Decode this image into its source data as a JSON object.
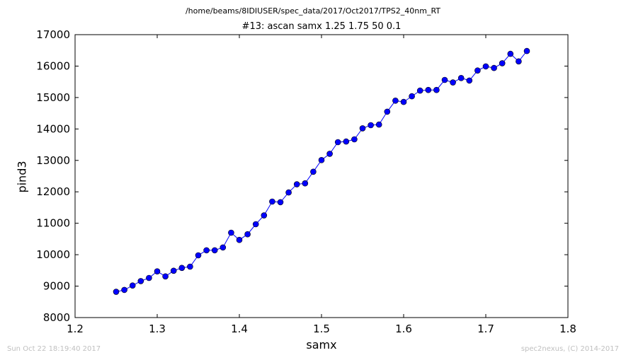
{
  "suptitle": "/home/beams/8IDIUSER/spec_data/2017/Oct2017/TPS2_40nm_RT",
  "footer": {
    "timestamp": "Sun Oct 22 18:19:40 2017",
    "credit": "spec2nexus, (C) 2014-2017"
  },
  "chart_data": {
    "type": "line",
    "title": "#13: ascan  samx 1.25 1.75  50 0.1",
    "xlabel": "samx",
    "ylabel": "pind3",
    "xlim": [
      1.2,
      1.8
    ],
    "ylim": [
      8000,
      17000
    ],
    "xticks": [
      1.2,
      1.3,
      1.4,
      1.5,
      1.6,
      1.7,
      1.8
    ],
    "xtick_labels": [
      "1.2",
      "1.3",
      "1.4",
      "1.5",
      "1.6",
      "1.7",
      "1.8"
    ],
    "yticks": [
      8000,
      9000,
      10000,
      11000,
      12000,
      13000,
      14000,
      15000,
      16000,
      17000
    ],
    "ytick_labels": [
      "8000",
      "9000",
      "10000",
      "11000",
      "12000",
      "13000",
      "14000",
      "15000",
      "16000",
      "17000"
    ],
    "grid": false,
    "marker": "circle",
    "series_color": "#0000ff",
    "x": [
      1.25,
      1.26,
      1.27,
      1.28,
      1.29,
      1.3,
      1.31,
      1.32,
      1.33,
      1.34,
      1.35,
      1.36,
      1.37,
      1.38,
      1.39,
      1.4,
      1.41,
      1.42,
      1.43,
      1.44,
      1.45,
      1.46,
      1.47,
      1.48,
      1.49,
      1.5,
      1.51,
      1.52,
      1.53,
      1.54,
      1.55,
      1.56,
      1.57,
      1.58,
      1.59,
      1.6,
      1.61,
      1.62,
      1.63,
      1.64,
      1.65,
      1.66,
      1.67,
      1.68,
      1.69,
      1.7,
      1.71,
      1.72,
      1.73,
      1.74,
      1.75
    ],
    "y": [
      8820,
      8880,
      9020,
      9160,
      9260,
      9470,
      9310,
      9490,
      9580,
      9620,
      9980,
      10140,
      10140,
      10230,
      10700,
      10470,
      10650,
      10970,
      11250,
      11690,
      11670,
      11980,
      12240,
      12270,
      12640,
      13010,
      13210,
      13580,
      13600,
      13670,
      14020,
      14120,
      14140,
      14550,
      14900,
      14860,
      15040,
      15220,
      15240,
      15240,
      15560,
      15480,
      15620,
      15540,
      15860,
      15990,
      15940,
      16090,
      16390,
      16150,
      16480
    ]
  }
}
